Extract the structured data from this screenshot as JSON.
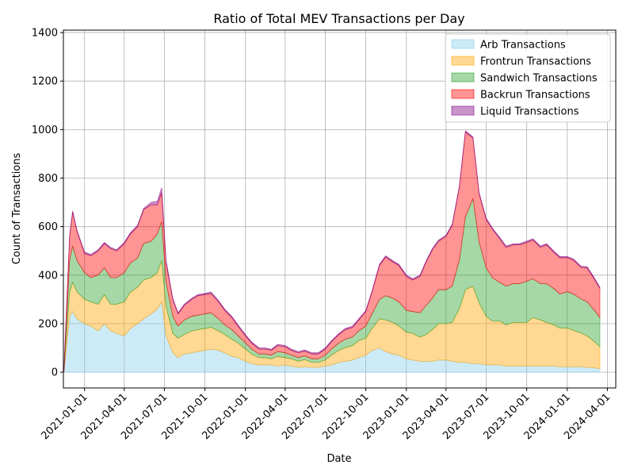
{
  "chart_data": {
    "type": "area",
    "stacked": true,
    "title": "Ratio of Total MEV Transactions per Day",
    "xlabel": "Date",
    "ylabel": "Count of Transactions",
    "x_range": [
      "2020-11-14",
      "2024-04-20"
    ],
    "ylim": [
      -65,
      1410
    ],
    "y_ticks": [
      0,
      200,
      400,
      600,
      800,
      1000,
      1200,
      1400
    ],
    "x_ticks": [
      "2021-01-01",
      "2021-04-01",
      "2021-07-01",
      "2021-10-01",
      "2022-01-01",
      "2022-04-01",
      "2022-07-01",
      "2022-10-01",
      "2023-01-01",
      "2023-04-01",
      "2023-07-01",
      "2023-10-01",
      "2024-01-01",
      "2024-04-01"
    ],
    "grid": true,
    "legend": "upper-right",
    "x": [
      "2020-11-15",
      "2020-11-28",
      "2020-12-05",
      "2020-12-15",
      "2021-01-01",
      "2021-01-15",
      "2021-02-01",
      "2021-02-15",
      "2021-03-01",
      "2021-03-15",
      "2021-04-01",
      "2021-04-15",
      "2021-05-01",
      "2021-05-15",
      "2021-06-01",
      "2021-06-15",
      "2021-06-25",
      "2021-07-05",
      "2021-07-20",
      "2021-08-01",
      "2021-08-15",
      "2021-09-01",
      "2021-09-15",
      "2021-10-01",
      "2021-10-15",
      "2021-11-01",
      "2021-11-15",
      "2021-12-01",
      "2021-12-15",
      "2022-01-01",
      "2022-01-15",
      "2022-02-01",
      "2022-02-15",
      "2022-03-01",
      "2022-03-15",
      "2022-04-01",
      "2022-04-15",
      "2022-05-01",
      "2022-05-15",
      "2022-06-01",
      "2022-06-15",
      "2022-07-01",
      "2022-07-15",
      "2022-08-01",
      "2022-08-15",
      "2022-09-01",
      "2022-09-15",
      "2022-10-01",
      "2022-10-15",
      "2022-11-01",
      "2022-11-15",
      "2022-12-01",
      "2022-12-15",
      "2023-01-01",
      "2023-01-15",
      "2023-02-01",
      "2023-02-15",
      "2023-03-01",
      "2023-03-15",
      "2023-04-01",
      "2023-04-15",
      "2023-05-01",
      "2023-05-15",
      "2023-06-01",
      "2023-06-15",
      "2023-07-01",
      "2023-07-15",
      "2023-08-01",
      "2023-08-15",
      "2023-09-01",
      "2023-09-15",
      "2023-10-01",
      "2023-10-15",
      "2023-11-01",
      "2023-11-15",
      "2023-12-01",
      "2023-12-15",
      "2024-01-01",
      "2024-01-15",
      "2024-02-01",
      "2024-02-15",
      "2024-03-01",
      "2024-03-15"
    ],
    "series": [
      {
        "name": "Arb Transactions",
        "color": "#87ceeb",
        "values": [
          0,
          230,
          250,
          220,
          200,
          190,
          170,
          200,
          170,
          160,
          150,
          180,
          200,
          220,
          240,
          260,
          290,
          150,
          80,
          60,
          75,
          80,
          85,
          90,
          95,
          90,
          80,
          65,
          60,
          45,
          35,
          30,
          30,
          30,
          25,
          30,
          25,
          20,
          22,
          20,
          20,
          25,
          30,
          40,
          45,
          50,
          60,
          70,
          90,
          100,
          85,
          75,
          70,
          55,
          50,
          45,
          45,
          45,
          50,
          50,
          45,
          40,
          40,
          35,
          35,
          30,
          30,
          30,
          25,
          25,
          25,
          25,
          25,
          25,
          25,
          25,
          22,
          22,
          22,
          22,
          20,
          18,
          15
        ]
      },
      {
        "name": "Frontrun Transactions",
        "color": "#ffa500",
        "values": [
          0,
          100,
          120,
          110,
          100,
          100,
          110,
          120,
          110,
          120,
          140,
          150,
          150,
          160,
          150,
          150,
          170,
          120,
          80,
          80,
          80,
          90,
          90,
          90,
          90,
          80,
          75,
          70,
          60,
          50,
          40,
          30,
          30,
          25,
          40,
          30,
          30,
          25,
          30,
          20,
          20,
          25,
          40,
          50,
          55,
          60,
          70,
          70,
          90,
          120,
          130,
          130,
          120,
          110,
          110,
          100,
          110,
          130,
          150,
          150,
          160,
          220,
          300,
          320,
          250,
          200,
          180,
          180,
          170,
          180,
          180,
          180,
          200,
          190,
          180,
          170,
          160,
          160,
          150,
          140,
          130,
          110,
          90
        ]
      },
      {
        "name": "Sandwich Transactions",
        "color": "#2ca02c",
        "values": [
          0,
          130,
          150,
          130,
          110,
          100,
          120,
          110,
          110,
          110,
          120,
          120,
          120,
          150,
          150,
          160,
          160,
          100,
          70,
          50,
          60,
          60,
          60,
          60,
          60,
          50,
          40,
          40,
          30,
          25,
          20,
          15,
          15,
          15,
          20,
          20,
          15,
          15,
          15,
          15,
          15,
          20,
          25,
          30,
          35,
          35,
          40,
          50,
          60,
          80,
          100,
          100,
          100,
          90,
          90,
          100,
          120,
          130,
          140,
          140,
          150,
          200,
          300,
          360,
          250,
          200,
          180,
          160,
          160,
          160,
          160,
          170,
          160,
          150,
          160,
          150,
          140,
          150,
          150,
          140,
          140,
          130,
          120
        ]
      },
      {
        "name": "Backrun Transactions",
        "color": "#ff0000",
        "values": [
          0,
          100,
          140,
          120,
          80,
          90,
          100,
          100,
          120,
          110,
          120,
          120,
          130,
          140,
          150,
          120,
          120,
          80,
          70,
          50,
          60,
          70,
          80,
          80,
          80,
          70,
          60,
          50,
          40,
          30,
          25,
          20,
          20,
          20,
          25,
          25,
          20,
          20,
          20,
          20,
          20,
          25,
          30,
          35,
          40,
          40,
          45,
          60,
          90,
          140,
          160,
          150,
          150,
          140,
          130,
          150,
          180,
          200,
          200,
          220,
          250,
          300,
          350,
          250,
          200,
          200,
          200,
          180,
          160,
          160,
          160,
          160,
          160,
          150,
          160,
          150,
          150,
          140,
          140,
          130,
          140,
          130,
          120
        ]
      },
      {
        "name": "Liquid Transactions",
        "color": "#800080",
        "values": [
          0,
          5,
          5,
          5,
          5,
          5,
          5,
          5,
          5,
          5,
          5,
          5,
          5,
          5,
          10,
          15,
          20,
          10,
          5,
          5,
          5,
          5,
          5,
          5,
          5,
          5,
          5,
          5,
          5,
          5,
          5,
          5,
          5,
          5,
          5,
          5,
          5,
          5,
          5,
          5,
          5,
          5,
          5,
          5,
          5,
          5,
          5,
          5,
          5,
          5,
          5,
          5,
          5,
          5,
          5,
          5,
          5,
          5,
          5,
          5,
          5,
          5,
          5,
          5,
          5,
          5,
          5,
          5,
          5,
          5,
          5,
          5,
          5,
          5,
          5,
          5,
          5,
          5,
          5,
          5,
          5,
          5,
          5
        ]
      }
    ]
  }
}
